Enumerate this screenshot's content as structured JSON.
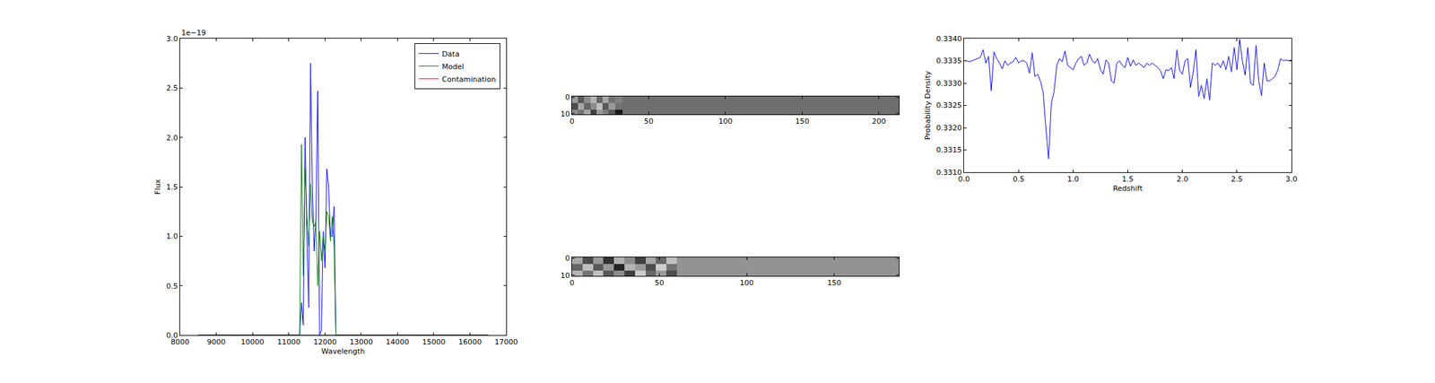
{
  "chart_data": [
    {
      "type": "line",
      "x_label": "Wavelength",
      "y_label": "Flux",
      "annotations": [
        {
          "text": "1e−19"
        }
      ],
      "legend": "upper right",
      "xlim": [
        8000,
        17000
      ],
      "xticks": [
        8000,
        9000,
        10000,
        11000,
        12000,
        13000,
        14000,
        15000,
        16000,
        17000
      ],
      "ylim": [
        0,
        3e-19
      ],
      "yticks": [
        {
          "value": 0,
          "label": "0.0"
        },
        {
          "value": 5e-20,
          "label": "0.5"
        },
        {
          "value": 1e-19,
          "label": "1.0"
        },
        {
          "value": 1.5e-19,
          "label": "1.5"
        },
        {
          "value": 2e-19,
          "label": "2.0"
        },
        {
          "value": 2.5e-19,
          "label": "2.5"
        },
        {
          "value": 3e-19,
          "label": "3.0"
        }
      ],
      "x": [
        8500,
        9000,
        9500,
        10000,
        10500,
        11000,
        11300,
        11350,
        11400,
        11450,
        11500,
        11550,
        11600,
        11650,
        11700,
        11750,
        11800,
        11850,
        11900,
        11950,
        12000,
        12050,
        12100,
        12150,
        12200,
        12250,
        12300,
        12350,
        12500,
        13000,
        13500,
        14000,
        14500,
        15000,
        15500,
        16000,
        16500
      ],
      "series": [
        {
          "name": "Data",
          "color": "#0000ff",
          "values": [
            0,
            0,
            0,
            0,
            0,
            0,
            0,
            3.3e-20,
            1e-20,
            2e-19,
            1e-19,
            2.8e-20,
            2.75e-19,
            1.5e-19,
            8.5e-20,
            1.2e-19,
            2.47e-19,
            0,
            5e-21,
            1.05e-19,
            6.8e-20,
            1.68e-19,
            1.5e-19,
            1e-19,
            1e-19,
            1.3e-19,
            0,
            0,
            0,
            0,
            0,
            0,
            0,
            0,
            0,
            0,
            0
          ]
        },
        {
          "name": "Model",
          "color": "#008000",
          "values": [
            0,
            0,
            0,
            0,
            0,
            0,
            0,
            1.93e-19,
            6e-20,
            1.68e-19,
            1.2e-19,
            9e-20,
            1.53e-19,
            1.15e-19,
            1.1e-19,
            1.15e-19,
            5e-20,
            1.05e-19,
            7.5e-20,
            1e-19,
            8.5e-20,
            1.25e-19,
            1.2e-19,
            9.5e-20,
            1.2e-19,
            9e-20,
            0,
            0,
            0,
            0,
            0,
            0,
            0,
            0,
            0,
            0,
            0
          ]
        },
        {
          "name": "Contamination",
          "color": "#ff0000",
          "values": [
            0,
            0,
            0,
            0,
            0,
            0,
            0,
            0,
            0,
            0,
            0,
            0,
            0,
            0,
            0,
            0,
            0,
            0,
            0,
            0,
            0,
            0,
            0,
            0,
            0,
            0,
            0,
            0,
            0,
            0,
            0,
            0,
            0,
            0,
            0,
            0,
            0
          ]
        }
      ]
    },
    {
      "type": "heatmap",
      "xlim": [
        0,
        213
      ],
      "xticks": [
        0,
        50,
        100,
        150,
        200
      ],
      "ylim": [
        10.5,
        -0.5
      ],
      "yticks": [
        0,
        10
      ],
      "zlim": [
        -1,
        1
      ],
      "x": [
        0,
        4,
        8,
        12,
        16,
        20,
        24,
        28,
        33,
        213
      ],
      "y": [
        -0.5,
        3.5,
        7.5,
        10.5
      ],
      "z": [
        [
          0.2,
          -0.3,
          0.1,
          0.4,
          -0.2,
          0.3,
          -0.1,
          0.0,
          -0.14
        ],
        [
          -0.4,
          0.3,
          -0.2,
          0.1,
          0.5,
          -0.3,
          0.2,
          -0.1,
          -0.14
        ],
        [
          0.1,
          -0.1,
          0.3,
          -0.5,
          0.2,
          0.0,
          -0.3,
          -0.8,
          -0.14
        ]
      ]
    },
    {
      "type": "heatmap",
      "xlim": [
        0,
        187
      ],
      "xticks": [
        0,
        50,
        100,
        150
      ],
      "ylim": [
        10.5,
        -0.5
      ],
      "yticks": [
        0,
        10
      ],
      "zlim": [
        -1,
        1
      ],
      "x": [
        0,
        6,
        12,
        18,
        24,
        30,
        36,
        42,
        48,
        54,
        60,
        187
      ],
      "y": [
        -0.5,
        3.5,
        7.5,
        10.5
      ],
      "z": [
        [
          0.3,
          -0.4,
          0.2,
          -0.6,
          0.4,
          0.1,
          -0.5,
          0.3,
          -0.2,
          0.5,
          0.15
        ],
        [
          -0.2,
          0.5,
          -0.3,
          0.2,
          -0.7,
          0.4,
          0.2,
          -0.4,
          0.6,
          -0.1,
          0.15
        ],
        [
          0.4,
          -0.1,
          0.5,
          -0.3,
          0.1,
          -0.5,
          0.6,
          -0.2,
          0.2,
          -0.4,
          0.15
        ]
      ]
    },
    {
      "type": "line",
      "x_label": "Redshift",
      "y_label": "Probability Density",
      "xlim": [
        0,
        3
      ],
      "xticks": [
        {
          "value": 0,
          "label": "0.0"
        },
        {
          "value": 0.5,
          "label": "0.5"
        },
        {
          "value": 1,
          "label": "1.0"
        },
        {
          "value": 1.5,
          "label": "1.5"
        },
        {
          "value": 2,
          "label": "2.0"
        },
        {
          "value": 2.5,
          "label": "2.5"
        },
        {
          "value": 3,
          "label": "3.0"
        }
      ],
      "ylim": [
        0.331,
        0.334
      ],
      "yticks": [
        {
          "value": 0.331,
          "label": "0.3310"
        },
        {
          "value": 0.3315,
          "label": "0.3315"
        },
        {
          "value": 0.332,
          "label": "0.3320"
        },
        {
          "value": 0.3325,
          "label": "0.3325"
        },
        {
          "value": 0.333,
          "label": "0.3330"
        },
        {
          "value": 0.3335,
          "label": "0.3335"
        },
        {
          "value": 0.334,
          "label": "0.3340"
        }
      ],
      "x": [
        0,
        0.025,
        0.05,
        0.075,
        0.1,
        0.125,
        0.15,
        0.175,
        0.2,
        0.225,
        0.25,
        0.275,
        0.3,
        0.325,
        0.35,
        0.375,
        0.4,
        0.425,
        0.45,
        0.475,
        0.5,
        0.525,
        0.55,
        0.575,
        0.6,
        0.625,
        0.65,
        0.675,
        0.7,
        0.725,
        0.75,
        0.775,
        0.8,
        0.825,
        0.85,
        0.875,
        0.9,
        0.925,
        0.95,
        0.975,
        1,
        1.025,
        1.05,
        1.075,
        1.1,
        1.125,
        1.15,
        1.175,
        1.2,
        1.225,
        1.25,
        1.275,
        1.3,
        1.325,
        1.35,
        1.375,
        1.4,
        1.425,
        1.45,
        1.475,
        1.5,
        1.525,
        1.55,
        1.575,
        1.6,
        1.625,
        1.65,
        1.675,
        1.7,
        1.725,
        1.75,
        1.775,
        1.8,
        1.825,
        1.85,
        1.875,
        1.9,
        1.925,
        1.95,
        1.975,
        2,
        2.025,
        2.05,
        2.075,
        2.1,
        2.125,
        2.15,
        2.175,
        2.2,
        2.225,
        2.25,
        2.275,
        2.3,
        2.325,
        2.35,
        2.375,
        2.4,
        2.425,
        2.45,
        2.475,
        2.5,
        2.525,
        2.55,
        2.575,
        2.6,
        2.625,
        2.65,
        2.675,
        2.7,
        2.725,
        2.75,
        2.775,
        2.8,
        2.825,
        2.85,
        2.875,
        2.9,
        2.925,
        2.95,
        2.975,
        3
      ],
      "series": [
        {
          "color": "#0000ff",
          "values": [
            0.3335,
            0.3335,
            0.33348,
            0.3335,
            0.33352,
            0.33355,
            0.33358,
            0.33375,
            0.33345,
            0.3336,
            0.33283,
            0.3337,
            0.33355,
            0.33345,
            0.33332,
            0.3335,
            0.3334,
            0.33345,
            0.33348,
            0.33358,
            0.33345,
            0.3335,
            0.3335,
            0.33345,
            0.33322,
            0.33368,
            0.33315,
            0.3332,
            0.33305,
            0.3328,
            0.332,
            0.3313,
            0.33255,
            0.3328,
            0.3334,
            0.33355,
            0.33348,
            0.33372,
            0.3334,
            0.33335,
            0.3333,
            0.33345,
            0.33355,
            0.3336,
            0.3334,
            0.33345,
            0.33365,
            0.3335,
            0.33345,
            0.33355,
            0.3333,
            0.3332,
            0.33352,
            0.33345,
            0.33305,
            0.333,
            0.33345,
            0.3335,
            0.3334,
            0.33335,
            0.33358,
            0.33338,
            0.33352,
            0.3334,
            0.33345,
            0.3334,
            0.33335,
            0.33345,
            0.3334,
            0.33345,
            0.3334,
            0.33335,
            0.33328,
            0.3331,
            0.3333,
            0.33328,
            0.33335,
            0.3331,
            0.33375,
            0.33328,
            0.3332,
            0.3335,
            0.33355,
            0.3329,
            0.33325,
            0.33375,
            0.3327,
            0.33295,
            0.33265,
            0.3331,
            0.33262,
            0.33345,
            0.3334,
            0.33345,
            0.33335,
            0.3335,
            0.3333,
            0.3336,
            0.33325,
            0.3338,
            0.3333,
            0.33398,
            0.3335,
            0.33318,
            0.3338,
            0.333,
            0.33295,
            0.33385,
            0.33305,
            0.33272,
            0.33345,
            0.33305,
            0.33305,
            0.3331,
            0.33315,
            0.3333,
            0.33355,
            0.3335,
            0.33352,
            0.3335,
            0.33352
          ]
        }
      ]
    }
  ]
}
